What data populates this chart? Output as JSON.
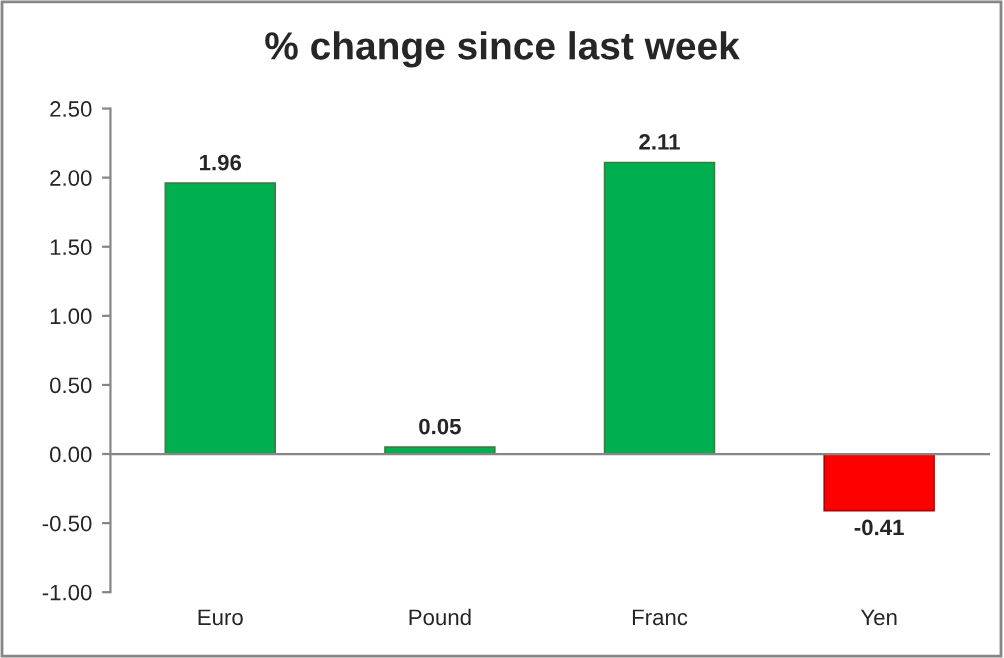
{
  "chart_data": {
    "type": "bar",
    "title": "% change since last week",
    "categories": [
      "Euro",
      "Pound",
      "Franc",
      "Yen"
    ],
    "values": [
      1.96,
      0.05,
      2.11,
      -0.41
    ],
    "colors": [
      "#00b050",
      "#00b050",
      "#00b050",
      "#ff0000"
    ],
    "value_labels": [
      "1.96",
      "0.05",
      "2.11",
      "-0.41"
    ],
    "ylim": [
      -1,
      2.5
    ],
    "yticks": [
      {
        "value": -1,
        "label": "-1.00"
      },
      {
        "value": -0.5,
        "label": "-0.50"
      },
      {
        "value": 0,
        "label": "0.00"
      },
      {
        "value": 0.5,
        "label": "0.50"
      },
      {
        "value": 1,
        "label": "1.00"
      },
      {
        "value": 1.5,
        "label": "1.50"
      },
      {
        "value": 2,
        "label": "2.00"
      },
      {
        "value": 2.5,
        "label": "2.50"
      }
    ],
    "legend": false
  }
}
